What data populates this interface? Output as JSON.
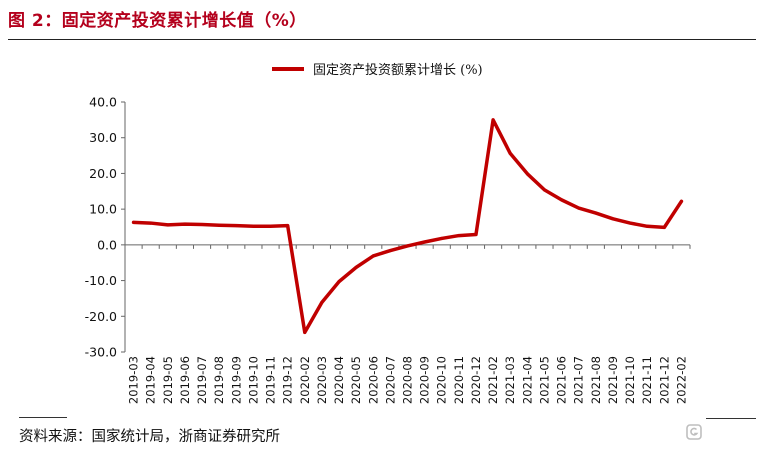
{
  "figure": {
    "title": "图 2：固定资产投资累计增长值（%）",
    "source": "资料来源：国家统计局，浙商证券研究所",
    "watermark": "格隆汇"
  },
  "colors": {
    "title": "#b4001c",
    "series": "#c00000",
    "axis": "#666666"
  },
  "chart_data": {
    "type": "line",
    "title": "",
    "xlabel": "",
    "ylabel": "",
    "ylim": [
      -30,
      40
    ],
    "yticks": [
      40,
      30,
      20,
      10,
      0,
      -10,
      -20,
      -30
    ],
    "ytick_labels": [
      "40.0",
      "30.0",
      "20.0",
      "10.0",
      "0.0",
      "-10.0",
      "-20.0",
      "-30.0"
    ],
    "grid": false,
    "legend_position": "top-center",
    "categories": [
      "2019-03",
      "2019-04",
      "2019-05",
      "2019-06",
      "2019-07",
      "2019-08",
      "2019-09",
      "2019-10",
      "2019-11",
      "2019-12",
      "2020-02",
      "2020-03",
      "2020-04",
      "2020-05",
      "2020-06",
      "2020-07",
      "2020-08",
      "2020-09",
      "2020-10",
      "2020-11",
      "2020-12",
      "2021-02",
      "2021-03",
      "2021-04",
      "2021-05",
      "2021-06",
      "2021-07",
      "2021-08",
      "2021-09",
      "2021-10",
      "2021-11",
      "2021-12",
      "2022-02"
    ],
    "series": [
      {
        "name": "固定资产投资额累计增长 (%)",
        "values": [
          6.3,
          6.1,
          5.6,
          5.8,
          5.7,
          5.5,
          5.4,
          5.2,
          5.2,
          5.4,
          -24.5,
          -16.1,
          -10.3,
          -6.3,
          -3.1,
          -1.6,
          -0.3,
          0.8,
          1.8,
          2.6,
          2.9,
          35.0,
          25.6,
          19.9,
          15.4,
          12.6,
          10.3,
          8.9,
          7.3,
          6.1,
          5.2,
          4.9,
          12.2
        ]
      }
    ]
  }
}
